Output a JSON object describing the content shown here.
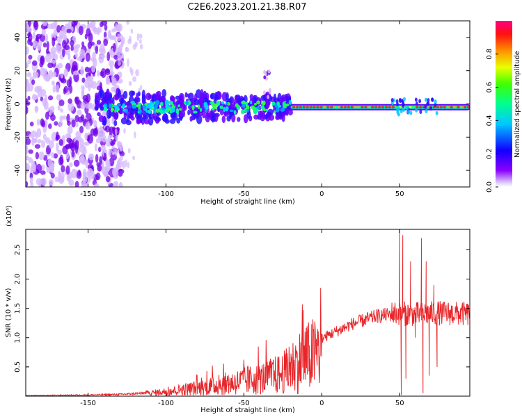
{
  "title": "C2E6.2023.201.21.38.R07",
  "colors": {
    "snr_line": "#e8262a",
    "spectrogram_faint": "#d6b8ff",
    "spectrogram_purple": "#7000e8",
    "frame": "#000000"
  },
  "chart_data": [
    {
      "type": "heatmap",
      "name": "spectrogram",
      "xlabel": "Height of straight line (km)",
      "ylabel": "Frequency (Hz)",
      "xlim": [
        -190,
        95
      ],
      "ylim": [
        -50,
        50
      ],
      "xticks": [
        -150,
        -100,
        -50,
        0,
        50
      ],
      "yticks": [
        -40,
        -20,
        0,
        20,
        40
      ],
      "grid": false,
      "colormap": "rainbow (violet to red)",
      "colorbar": {
        "label": "Normalized spectral amplitude",
        "range": [
          0.0,
          1.0
        ],
        "ticks": [
          0.0,
          0.2,
          0.4,
          0.6,
          0.8
        ]
      },
      "features": {
        "noise_region_x": [
          -190,
          -120
        ],
        "main_band_center_hz": -2,
        "main_band_start_x": -145,
        "strong_narrow_band_start_x": -20,
        "spike_near_x": -35
      }
    },
    {
      "type": "line",
      "name": "snr",
      "xlabel": "Height of straight line (km)",
      "ylabel": "SNR (10 * v/v)",
      "y_multiplier": "(x10⁴)",
      "xlim": [
        -190,
        95
      ],
      "ylim": [
        0,
        2.85
      ],
      "xticks": [
        -150,
        -100,
        -50,
        0,
        50
      ],
      "yticks": [
        0.5,
        1.0,
        1.5,
        2.0,
        2.5
      ],
      "ytick_labels": [
        "0.5",
        "1.0",
        "1.5",
        "2.0",
        "2.5"
      ],
      "grid": false,
      "envelope": [
        {
          "x": -190,
          "y": 0.01
        },
        {
          "x": -150,
          "y": 0.02
        },
        {
          "x": -130,
          "y": 0.03
        },
        {
          "x": -115,
          "y": 0.05
        },
        {
          "x": -100,
          "y": 0.1
        },
        {
          "x": -80,
          "y": 0.18
        },
        {
          "x": -60,
          "y": 0.28
        },
        {
          "x": -40,
          "y": 0.38
        },
        {
          "x": -25,
          "y": 0.5
        },
        {
          "x": -15,
          "y": 0.75
        },
        {
          "x": 0,
          "y": 1.0
        },
        {
          "x": 20,
          "y": 1.25
        },
        {
          "x": 35,
          "y": 1.38
        },
        {
          "x": 47,
          "y": 1.42
        },
        {
          "x": 60,
          "y": 1.4
        },
        {
          "x": 75,
          "y": 1.42
        },
        {
          "x": 95,
          "y": 1.4
        }
      ],
      "spikes": [
        {
          "x": 50,
          "y": 2.85
        },
        {
          "x": 51,
          "y": 0.02
        },
        {
          "x": 52,
          "y": 2.75
        },
        {
          "x": 54,
          "y": 0.3
        },
        {
          "x": 57,
          "y": 2.3
        },
        {
          "x": 60,
          "y": 1.0
        },
        {
          "x": 64,
          "y": 2.7
        },
        {
          "x": 65,
          "y": 0.05
        },
        {
          "x": 67,
          "y": 2.3
        },
        {
          "x": 69,
          "y": 0.35
        },
        {
          "x": 72,
          "y": 1.9
        },
        {
          "x": 74,
          "y": 0.5
        }
      ]
    }
  ]
}
